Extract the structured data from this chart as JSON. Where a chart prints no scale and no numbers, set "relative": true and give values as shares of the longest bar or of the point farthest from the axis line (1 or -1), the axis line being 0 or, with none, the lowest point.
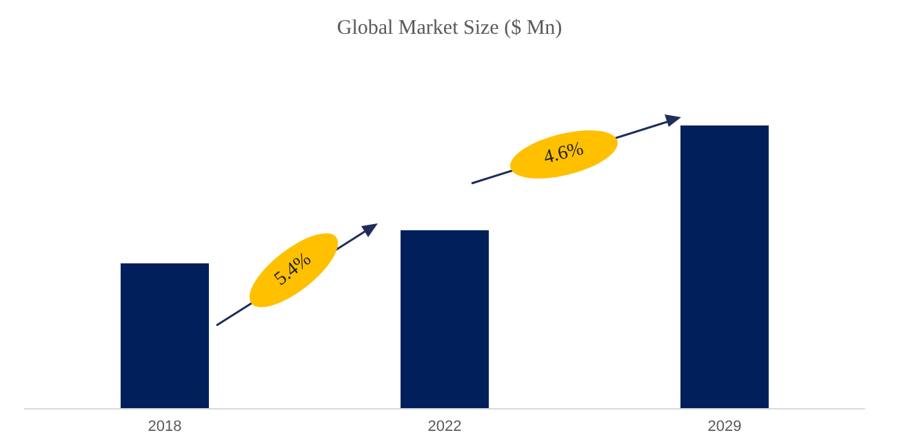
{
  "chart_data": {
    "type": "bar",
    "title": "Global Market Size ($ Mn)",
    "categories": [
      "2018",
      "2022",
      "2029"
    ],
    "values": [
      0.512,
      0.629,
      1
    ],
    "color": "#001f5b",
    "relative": true,
    "annotations": [
      "5.4%",
      "4.6%"
    ]
  }
}
